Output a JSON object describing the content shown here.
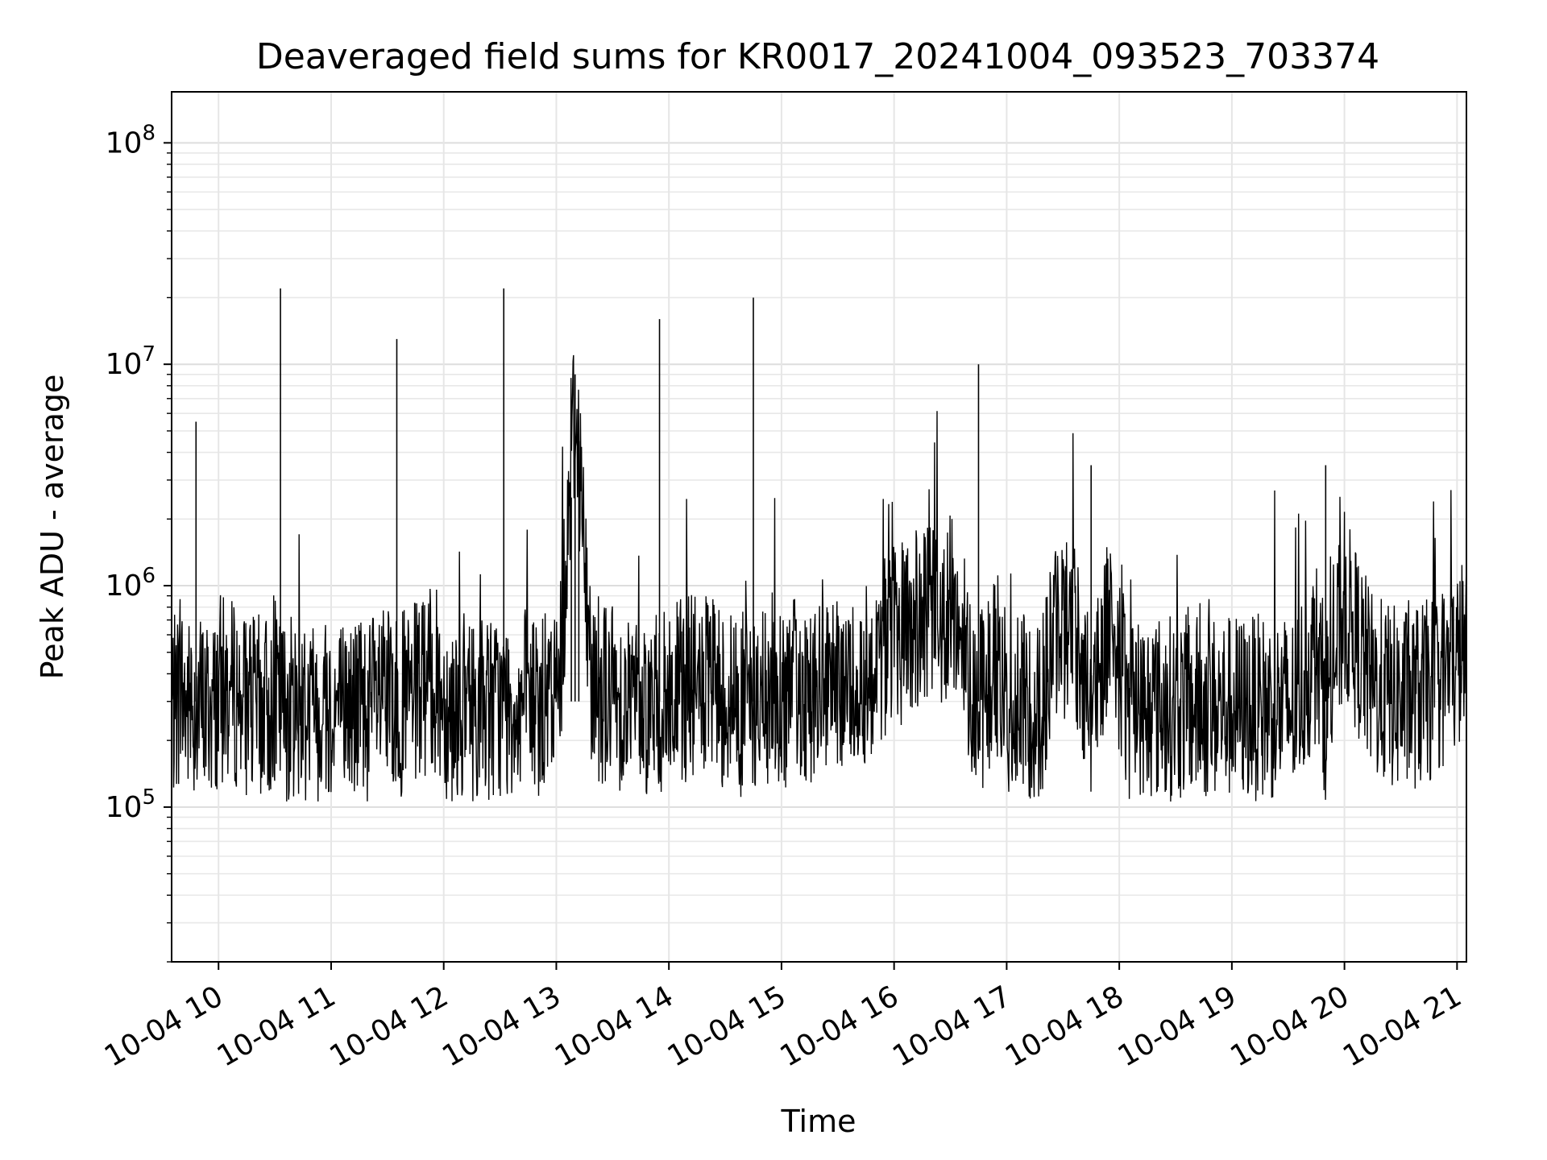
{
  "chart_data": {
    "type": "line",
    "title": "Deaveraged field sums for KR0017_20241004_093523_703374",
    "xlabel": "Time",
    "ylabel": "Peak ADU - average",
    "yscale": "log",
    "ylim": [
      20000,
      170000000
    ],
    "xlim": [
      "2024-10-04 09:35",
      "2024-10-04 21:05"
    ],
    "grid": true,
    "line_color": "#000000",
    "x_ticks": [
      "10-04 10",
      "10-04 11",
      "10-04 12",
      "10-04 13",
      "10-04 14",
      "10-04 15",
      "10-04 16",
      "10-04 17",
      "10-04 18",
      "10-04 19",
      "10-04 20",
      "10-04 21"
    ],
    "y_ticks": [
      {
        "value": 100000,
        "base": "10",
        "exp": "5"
      },
      {
        "value": 1000000,
        "base": "10",
        "exp": "6"
      },
      {
        "value": 10000000,
        "base": "10",
        "exp": "7"
      },
      {
        "value": 100000000,
        "base": "10",
        "exp": "8"
      }
    ],
    "series": [
      {
        "x": [
          "2024-10-04 09:35",
          "2024-10-04 09:40",
          "2024-10-04 09:45",
          "2024-10-04 09:48",
          "2024-10-04 09:50",
          "2024-10-04 09:55",
          "2024-10-04 10:00",
          "2024-10-04 10:10",
          "2024-10-04 10:20",
          "2024-10-04 10:33",
          "2024-10-04 10:40",
          "2024-10-04 10:55",
          "2024-10-04 11:10",
          "2024-10-04 11:25",
          "2024-10-04 11:35",
          "2024-10-04 11:45",
          "2024-10-04 11:55",
          "2024-10-04 12:05",
          "2024-10-04 12:20",
          "2024-10-04 12:32",
          "2024-10-04 12:45",
          "2024-10-04 13:00",
          "2024-10-04 13:05",
          "2024-10-04 13:08",
          "2024-10-04 13:10",
          "2024-10-04 13:12",
          "2024-10-04 13:15",
          "2024-10-04 13:20",
          "2024-10-04 13:30",
          "2024-10-04 13:45",
          "2024-10-04 13:55",
          "2024-10-04 14:10",
          "2024-10-04 14:25",
          "2024-10-04 14:35",
          "2024-10-04 14:45",
          "2024-10-04 14:55",
          "2024-10-04 15:10",
          "2024-10-04 15:25",
          "2024-10-04 15:45",
          "2024-10-04 16:00",
          "2024-10-04 16:15",
          "2024-10-04 16:33",
          "2024-10-04 16:45",
          "2024-10-04 16:55",
          "2024-10-04 17:05",
          "2024-10-04 17:15",
          "2024-10-04 17:25",
          "2024-10-04 17:35",
          "2024-10-04 17:45",
          "2024-10-04 17:55",
          "2024-10-04 18:05",
          "2024-10-04 18:15",
          "2024-10-04 18:30",
          "2024-10-04 18:45",
          "2024-10-04 19:00",
          "2024-10-04 19:15",
          "2024-10-04 19:30",
          "2024-10-04 19:45",
          "2024-10-04 19:50",
          "2024-10-04 20:00",
          "2024-10-04 20:15",
          "2024-10-04 20:30",
          "2024-10-04 20:45",
          "2024-10-04 21:00",
          "2024-10-04 21:05"
        ],
        "y": [
          250000,
          350000,
          220000,
          5500000,
          300000,
          180000,
          350000,
          320000,
          260000,
          22000000,
          280000,
          250000,
          240000,
          300000,
          13000000,
          320000,
          380000,
          250000,
          270000,
          22000000,
          300000,
          260000,
          200000,
          2500000,
          9000000,
          4500000,
          800000,
          350000,
          320000,
          300000,
          16000000,
          350000,
          330000,
          300000,
          20000000,
          300000,
          350000,
          300000,
          400000,
          600000,
          700000,
          800000,
          10000000,
          450000,
          200000,
          180000,
          600000,
          700000,
          3500000,
          800000,
          250000,
          180000,
          200000,
          220000,
          230000,
          210000,
          250000,
          500000,
          3500000,
          800000,
          350000,
          300000,
          330000,
          450000,
          550000
        ]
      }
    ]
  }
}
